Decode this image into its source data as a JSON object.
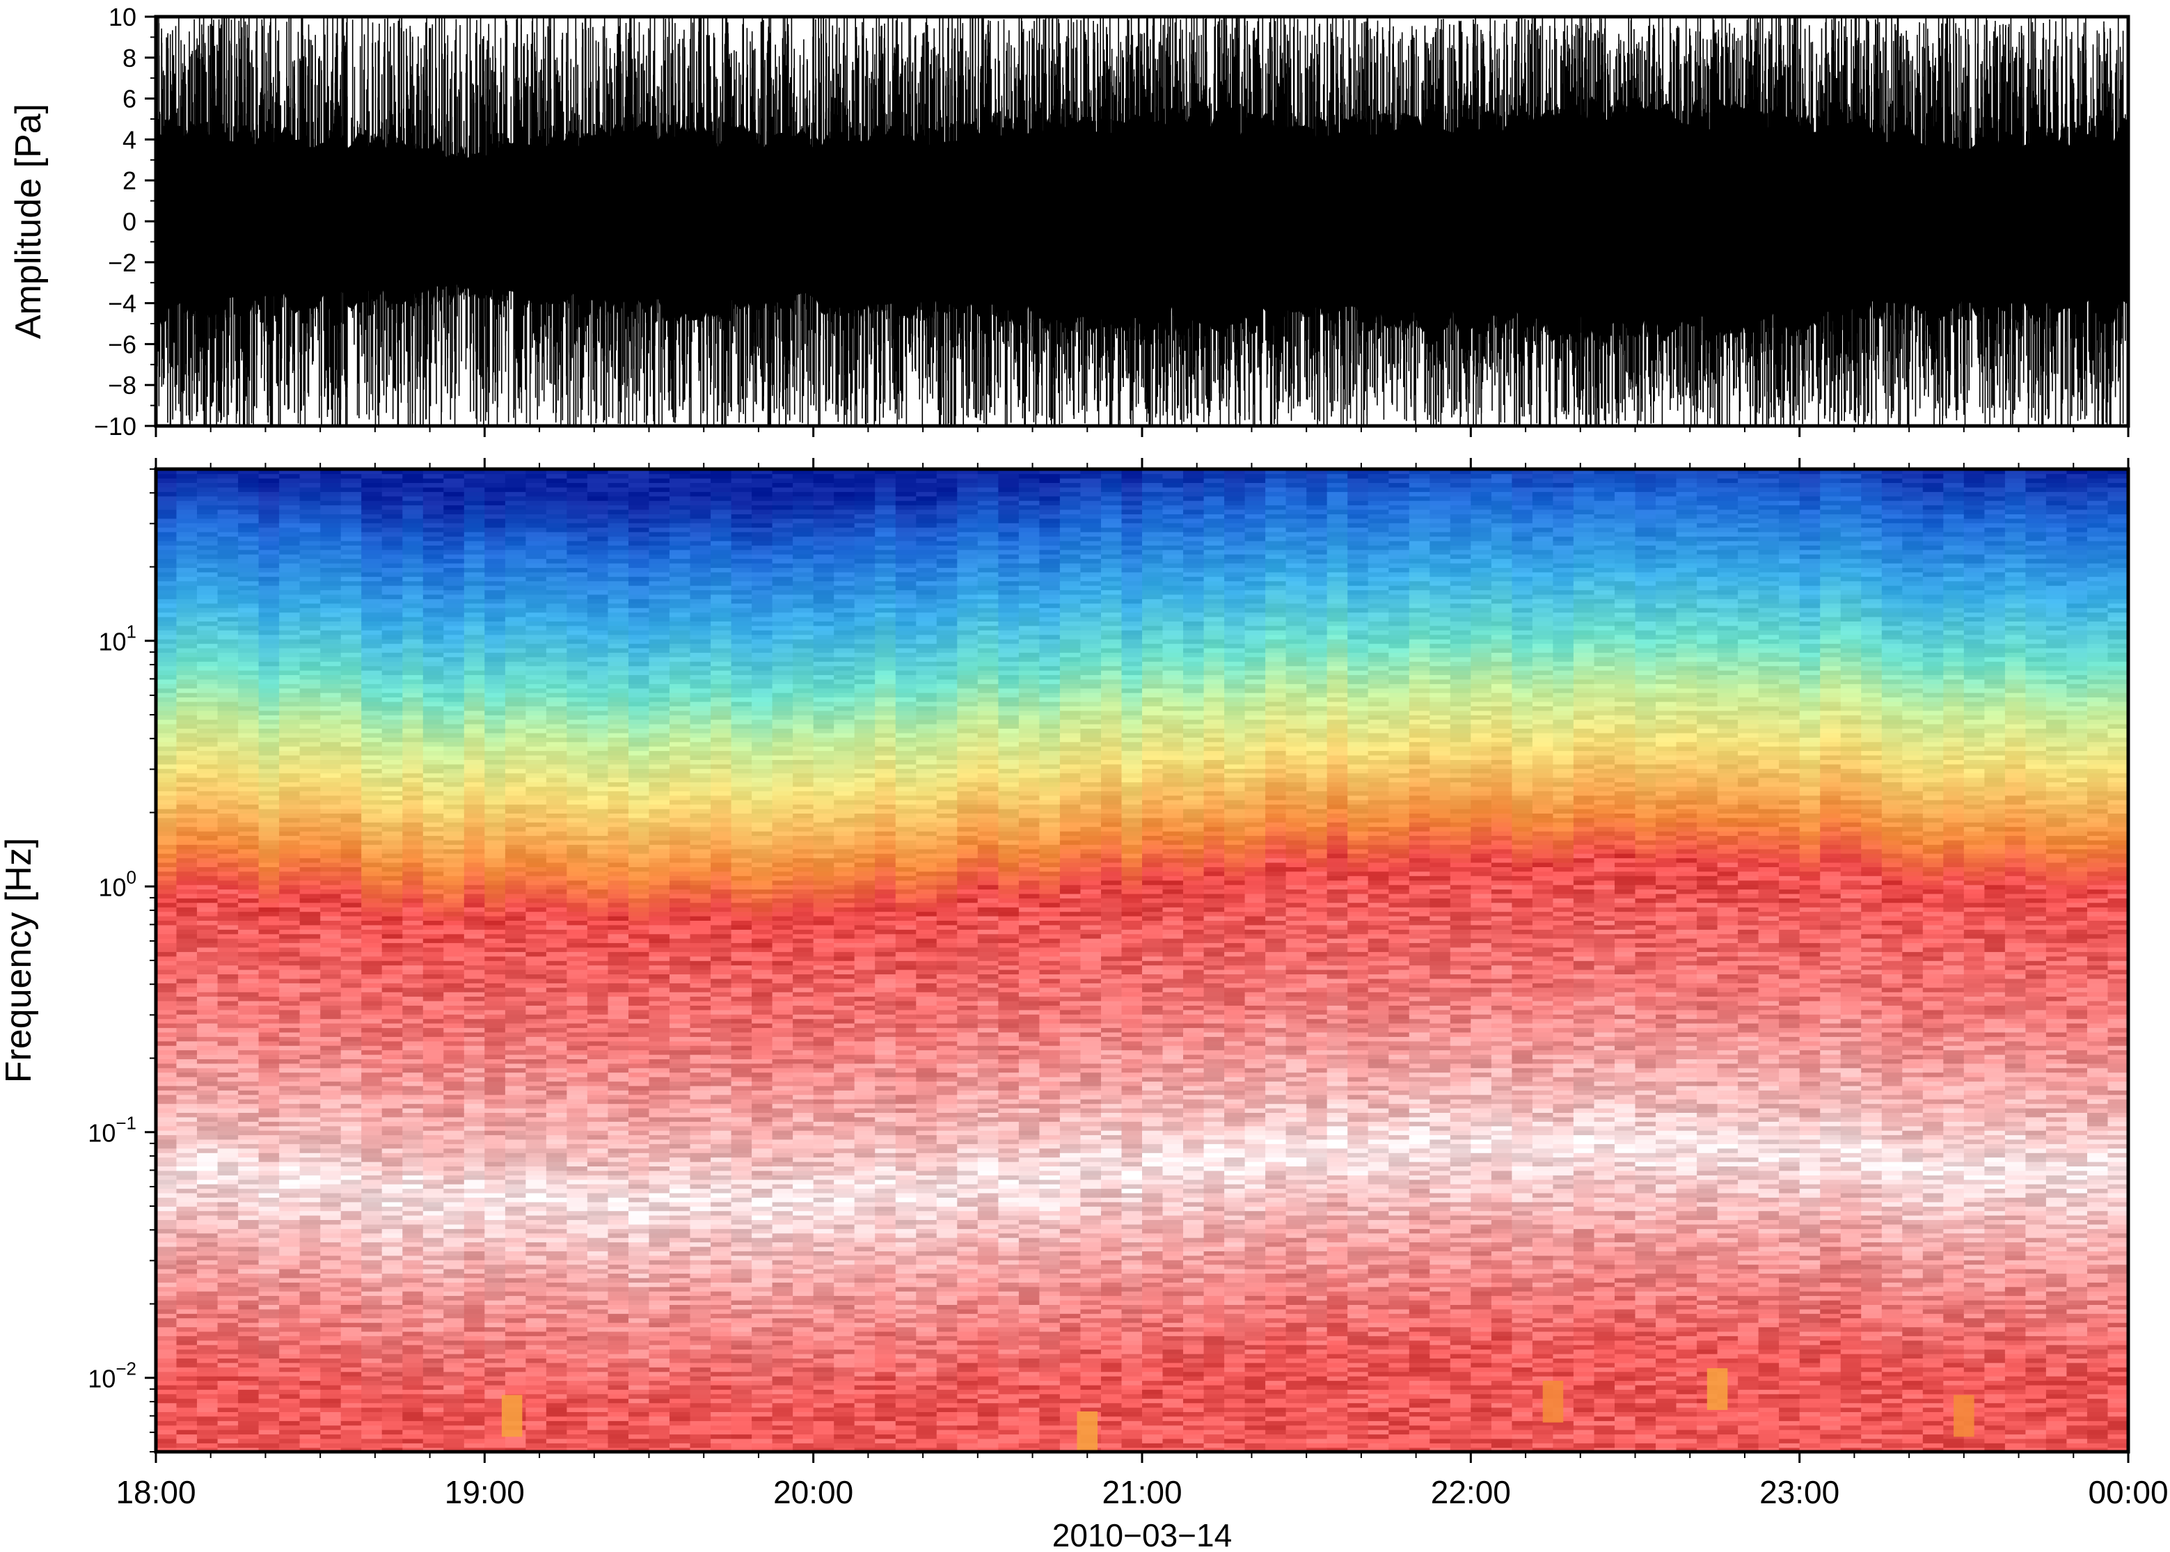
{
  "chart_data": [
    {
      "type": "line",
      "panel": "waveform",
      "ylabel": "Amplitude [Pa]",
      "ylim": [
        -10,
        10
      ],
      "yticks": [
        -10,
        -8,
        -6,
        -4,
        -2,
        0,
        2,
        4,
        6,
        8,
        10
      ],
      "ytick_labels": [
        "−10",
        "−8",
        "−6",
        "−4",
        "−2",
        "0",
        "2",
        "4",
        "6",
        "8",
        "10"
      ],
      "grid": false,
      "series": [
        {
          "color": "#000000",
          "description_of_values": "dense high-frequency infrasound pressure record",
          "envelope_hours": [
            18.0,
            18.5,
            19.0,
            19.5,
            20.0,
            20.5,
            21.0,
            21.5,
            22.0,
            22.5,
            23.0,
            23.5,
            24.0
          ],
          "envelope_solid_amplitude": [
            4.5,
            4.0,
            3.5,
            4.5,
            4.0,
            4.5,
            5.0,
            4.5,
            5.0,
            5.5,
            5.0,
            4.0,
            4.5
          ],
          "envelope_peak_amplitude": [
            10,
            10,
            10,
            10,
            10,
            10,
            10,
            10,
            10,
            10,
            10,
            10,
            10
          ]
        }
      ]
    },
    {
      "type": "heatmap",
      "panel": "spectrogram",
      "ylabel": "Frequency [Hz]",
      "yscale": "log",
      "ylim": [
        0.005,
        50
      ],
      "yticks": [
        0.01,
        0.1,
        1,
        10
      ],
      "ytick_labels": [
        {
          "base": "10",
          "exp": "−2"
        },
        {
          "base": "10",
          "exp": "−1"
        },
        {
          "base": "10",
          "exp": "0"
        },
        {
          "base": "10",
          "exp": "1"
        }
      ],
      "xlabel": "2010−03−14",
      "xlim": [
        "18:00",
        "00:00"
      ],
      "xticks": [
        "18:00",
        "19:00",
        "20:00",
        "21:00",
        "22:00",
        "23:00",
        "00:00"
      ],
      "colormap": {
        "stops": [
          "#0a1e9e",
          "#1e6edc",
          "#3cb4f0",
          "#6ee6c8",
          "#c8f09a",
          "#f5e678",
          "#f7a040",
          "#f05050",
          "#f8b4b4",
          "#ffffff"
        ],
        "frequency_order": "from highest frequency to lowest"
      },
      "frequency_rows_hz": [
        0.01,
        0.03,
        0.07,
        0.1,
        0.3,
        1,
        1.5,
        3,
        5,
        8,
        15,
        30,
        50
      ],
      "frequency_row_colors": [
        "#f05858",
        "#f6a0a0",
        "#fde6e8",
        "#f8c0c0",
        "#f47878",
        "#ee4a4a",
        "#f58a3c",
        "#f5e07a",
        "#c6ee9c",
        "#6ee2cc",
        "#3aaee8",
        "#1e6ad8",
        "#0c24a2"
      ],
      "low_freq_hot_spots": [
        {
          "time": "19:05",
          "freq_hz": 0.007,
          "color": "#f7a040"
        },
        {
          "time": "20:50",
          "freq_hz": 0.006,
          "color": "#f7a040"
        },
        {
          "time": "22:15",
          "freq_hz": 0.008,
          "color": "#f58a3c"
        },
        {
          "time": "22:45",
          "freq_hz": 0.009,
          "color": "#f7a040"
        },
        {
          "time": "23:30",
          "freq_hz": 0.007,
          "color": "#f58a3c"
        }
      ]
    }
  ]
}
